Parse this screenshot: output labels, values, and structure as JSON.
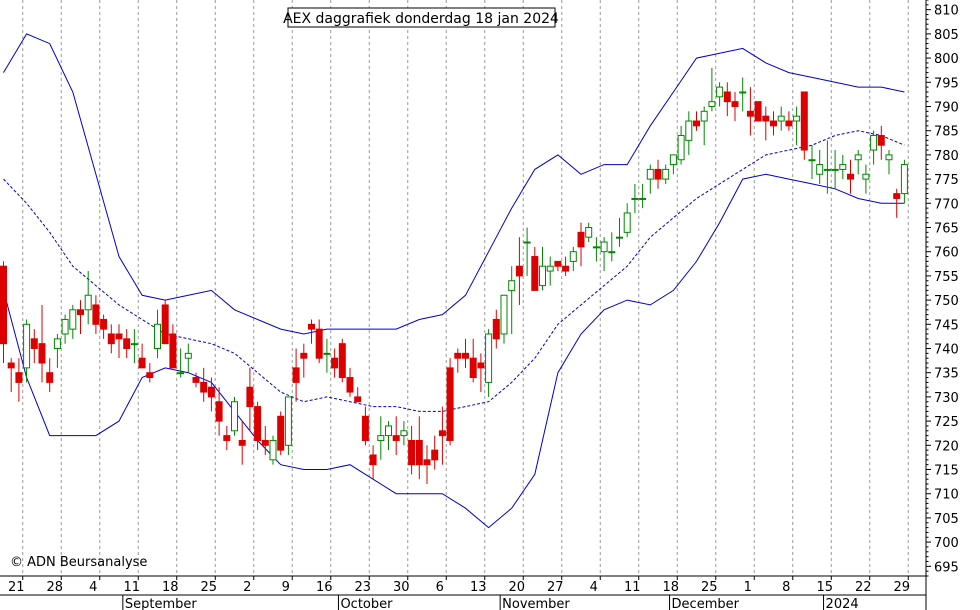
{
  "chart_data": {
    "type": "candlestick",
    "title": "AEX daggrafiek donderdag 18 jan 2024",
    "copyright": "© ADN Beursanalyse",
    "ylim": [
      693,
      812
    ],
    "y_ticks": [
      695,
      700,
      705,
      710,
      715,
      720,
      725,
      730,
      735,
      740,
      745,
      750,
      755,
      760,
      765,
      770,
      775,
      780,
      785,
      790,
      795,
      800,
      805,
      810
    ],
    "x_ticks": [
      "21",
      "28",
      "4",
      "11",
      "18",
      "25",
      "2",
      "9",
      "16",
      "23",
      "30",
      "6",
      "13",
      "20",
      "27",
      "4",
      "11",
      "18",
      "25",
      "1",
      "8",
      "15",
      "22",
      "29"
    ],
    "x_months": [
      "September",
      "October",
      "November",
      "December",
      "2024"
    ],
    "grid": "vertical dotted at each week",
    "colors": {
      "up": "#008800",
      "down": "#dd0000",
      "band": "#0000cc",
      "grid": "#999999"
    },
    "candles": [
      [
        757,
        758,
        737,
        741
      ],
      [
        737,
        738,
        731,
        736
      ],
      [
        735,
        738,
        729,
        733
      ],
      [
        736,
        746,
        733,
        745
      ],
      [
        742,
        744,
        737,
        740
      ],
      [
        741,
        749,
        733,
        737
      ],
      [
        735,
        738,
        731,
        733
      ],
      [
        740,
        743,
        736,
        742
      ],
      [
        743,
        747,
        741,
        746
      ],
      [
        744,
        749,
        742,
        748
      ],
      [
        748,
        750,
        743,
        747
      ],
      [
        748,
        756,
        745,
        751
      ],
      [
        749,
        751,
        743,
        745
      ],
      [
        746,
        747,
        742,
        744
      ],
      [
        743,
        745,
        739,
        741
      ],
      [
        743,
        745,
        738,
        742
      ],
      [
        742,
        744,
        738,
        740
      ],
      [
        741,
        744,
        737,
        741
      ],
      [
        738,
        741,
        736,
        736
      ],
      [
        735,
        737,
        733,
        734
      ],
      [
        740,
        748,
        738,
        745
      ],
      [
        749,
        750,
        741,
        741
      ],
      [
        743,
        745,
        736,
        736
      ],
      [
        735,
        740,
        734,
        735
      ],
      [
        738,
        741,
        735,
        739
      ],
      [
        734,
        735,
        732,
        733
      ],
      [
        733,
        736,
        729,
        731
      ],
      [
        732,
        734,
        727,
        730
      ],
      [
        729,
        732,
        722,
        725
      ],
      [
        722,
        724,
        719,
        721
      ],
      [
        723,
        730,
        722,
        729
      ],
      [
        721,
        725,
        716,
        720
      ],
      [
        732,
        736,
        723,
        728
      ],
      [
        728,
        729,
        719,
        721
      ],
      [
        721,
        724,
        718,
        720
      ],
      [
        717,
        722,
        716,
        721
      ],
      [
        726,
        727,
        718,
        719
      ],
      [
        720,
        730,
        718,
        730
      ],
      [
        736,
        740,
        729,
        733
      ],
      [
        739,
        741,
        734,
        738
      ],
      [
        745,
        746,
        741,
        744
      ],
      [
        744,
        746,
        737,
        738
      ],
      [
        739,
        742,
        735,
        739
      ],
      [
        738,
        740,
        734,
        736
      ],
      [
        741,
        742,
        733,
        734
      ],
      [
        734,
        736,
        730,
        731
      ],
      [
        730,
        732,
        729,
        729
      ],
      [
        726,
        728,
        720,
        721
      ],
      [
        718,
        720,
        713,
        716
      ],
      [
        721,
        726,
        717,
        722
      ],
      [
        722,
        725,
        719,
        724
      ],
      [
        722,
        726,
        718,
        721
      ],
      [
        722,
        725,
        720,
        723
      ],
      [
        721,
        724,
        714,
        716
      ],
      [
        721,
        726,
        713,
        716
      ],
      [
        717,
        720,
        712,
        716
      ],
      [
        719,
        722,
        715,
        717
      ],
      [
        723,
        728,
        716,
        722
      ],
      [
        736,
        738,
        720,
        721
      ],
      [
        739,
        740,
        735,
        738
      ],
      [
        739,
        742,
        736,
        738
      ],
      [
        738,
        742,
        733,
        734
      ],
      [
        737,
        739,
        731,
        736
      ],
      [
        733,
        744,
        730,
        743
      ],
      [
        746,
        748,
        740,
        742
      ],
      [
        743,
        751,
        741,
        751
      ],
      [
        752,
        757,
        743,
        754
      ],
      [
        757,
        763,
        749,
        755
      ],
      [
        762,
        765,
        755,
        762
      ],
      [
        759,
        761,
        753,
        752
      ],
      [
        753,
        761,
        752,
        757
      ],
      [
        756,
        759,
        753,
        757
      ],
      [
        758,
        758,
        756,
        757
      ],
      [
        757,
        759,
        755,
        756
      ],
      [
        758,
        761,
        756,
        760
      ],
      [
        764,
        766,
        757,
        761
      ],
      [
        763,
        766,
        762,
        765
      ],
      [
        761,
        763,
        758,
        761
      ],
      [
        760,
        763,
        756,
        762
      ],
      [
        760,
        764,
        758,
        760
      ],
      [
        763,
        767,
        761,
        763
      ],
      [
        764,
        770,
        763,
        768
      ],
      [
        771,
        774,
        768,
        771
      ],
      [
        771,
        774,
        769,
        771
      ],
      [
        775,
        778,
        772,
        777
      ],
      [
        777,
        779,
        773,
        775
      ],
      [
        775,
        778,
        774,
        777
      ],
      [
        778,
        780,
        776,
        780
      ],
      [
        779,
        786,
        778,
        784
      ],
      [
        783,
        789,
        780,
        787
      ],
      [
        787,
        789,
        785,
        786
      ],
      [
        787,
        790,
        782,
        789
      ],
      [
        790,
        798,
        789,
        791
      ],
      [
        792,
        795,
        790,
        794
      ],
      [
        793,
        795,
        788,
        791
      ],
      [
        791,
        793,
        787,
        790
      ],
      [
        793,
        796,
        789,
        793
      ],
      [
        789,
        794,
        784,
        788
      ],
      [
        791,
        791,
        788,
        787
      ],
      [
        788,
        790,
        783,
        787
      ],
      [
        787,
        789,
        784,
        786
      ],
      [
        787,
        790,
        785,
        788
      ],
      [
        787,
        789,
        785,
        786
      ],
      [
        787,
        790,
        782,
        788
      ],
      [
        793,
        793,
        779,
        781
      ],
      [
        779,
        782,
        775,
        779
      ],
      [
        776,
        781,
        774,
        778
      ],
      [
        777,
        783,
        772,
        777
      ],
      [
        777,
        781,
        773,
        777
      ],
      [
        777,
        780,
        775,
        778
      ],
      [
        776,
        779,
        772,
        775
      ],
      [
        779,
        781,
        776,
        780
      ],
      [
        775,
        778,
        772,
        776
      ],
      [
        781,
        785,
        778,
        784
      ],
      [
        784,
        786,
        779,
        782
      ],
      [
        779,
        781,
        776,
        780
      ],
      [
        772,
        773,
        767,
        771
      ],
      [
        772,
        779,
        770,
        778
      ]
    ],
    "sma20": [
      [
        0,
        775
      ],
      [
        3,
        770
      ],
      [
        6,
        764
      ],
      [
        9,
        757
      ],
      [
        12,
        753
      ],
      [
        15,
        749
      ],
      [
        18,
        746
      ],
      [
        21,
        743
      ],
      [
        24,
        742
      ],
      [
        27,
        741
      ],
      [
        30,
        739
      ],
      [
        33,
        735
      ],
      [
        36,
        731
      ],
      [
        39,
        729
      ],
      [
        42,
        730
      ],
      [
        45,
        729
      ],
      [
        48,
        728
      ],
      [
        51,
        728
      ],
      [
        54,
        727
      ],
      [
        57,
        727
      ],
      [
        60,
        728
      ],
      [
        63,
        729
      ],
      [
        66,
        733
      ],
      [
        69,
        738
      ],
      [
        72,
        745
      ],
      [
        75,
        749
      ],
      [
        78,
        753
      ],
      [
        81,
        757
      ],
      [
        84,
        763
      ],
      [
        87,
        767
      ],
      [
        90,
        771
      ],
      [
        93,
        774
      ],
      [
        96,
        777
      ],
      [
        99,
        780
      ],
      [
        102,
        781
      ],
      [
        105,
        782
      ],
      [
        108,
        784
      ],
      [
        111,
        785
      ],
      [
        114,
        784
      ],
      [
        117,
        782
      ]
    ],
    "upper_band": [
      [
        0,
        797
      ],
      [
        3,
        805
      ],
      [
        6,
        803
      ],
      [
        9,
        793
      ],
      [
        12,
        776
      ],
      [
        15,
        759
      ],
      [
        18,
        751
      ],
      [
        21,
        750
      ],
      [
        24,
        751
      ],
      [
        27,
        752
      ],
      [
        30,
        748
      ],
      [
        33,
        746
      ],
      [
        36,
        744
      ],
      [
        39,
        743
      ],
      [
        42,
        744
      ],
      [
        45,
        744
      ],
      [
        48,
        744
      ],
      [
        51,
        744
      ],
      [
        54,
        746
      ],
      [
        57,
        747
      ],
      [
        60,
        751
      ],
      [
        63,
        760
      ],
      [
        66,
        769
      ],
      [
        69,
        777
      ],
      [
        72,
        780
      ],
      [
        75,
        776
      ],
      [
        78,
        778
      ],
      [
        81,
        778
      ],
      [
        84,
        786
      ],
      [
        87,
        793
      ],
      [
        90,
        800
      ],
      [
        93,
        801
      ],
      [
        96,
        802
      ],
      [
        99,
        799
      ],
      [
        102,
        797
      ],
      [
        105,
        796
      ],
      [
        108,
        795
      ],
      [
        111,
        794
      ],
      [
        114,
        794
      ],
      [
        117,
        793
      ]
    ],
    "lower_band": [
      [
        0,
        752
      ],
      [
        3,
        734
      ],
      [
        6,
        722
      ],
      [
        9,
        722
      ],
      [
        12,
        722
      ],
      [
        15,
        725
      ],
      [
        18,
        734
      ],
      [
        21,
        736
      ],
      [
        24,
        735
      ],
      [
        27,
        733
      ],
      [
        30,
        727
      ],
      [
        33,
        721
      ],
      [
        36,
        716
      ],
      [
        39,
        715
      ],
      [
        42,
        715
      ],
      [
        45,
        716
      ],
      [
        48,
        713
      ],
      [
        51,
        710
      ],
      [
        54,
        710
      ],
      [
        57,
        710
      ],
      [
        60,
        707
      ],
      [
        63,
        703
      ],
      [
        66,
        707
      ],
      [
        69,
        714
      ],
      [
        72,
        735
      ],
      [
        75,
        743
      ],
      [
        78,
        748
      ],
      [
        81,
        750
      ],
      [
        84,
        749
      ],
      [
        87,
        752
      ],
      [
        90,
        758
      ],
      [
        93,
        766
      ],
      [
        96,
        775
      ],
      [
        99,
        776
      ],
      [
        102,
        775
      ],
      [
        105,
        774
      ],
      [
        108,
        773
      ],
      [
        111,
        771
      ],
      [
        114,
        770
      ],
      [
        117,
        770
      ]
    ]
  }
}
